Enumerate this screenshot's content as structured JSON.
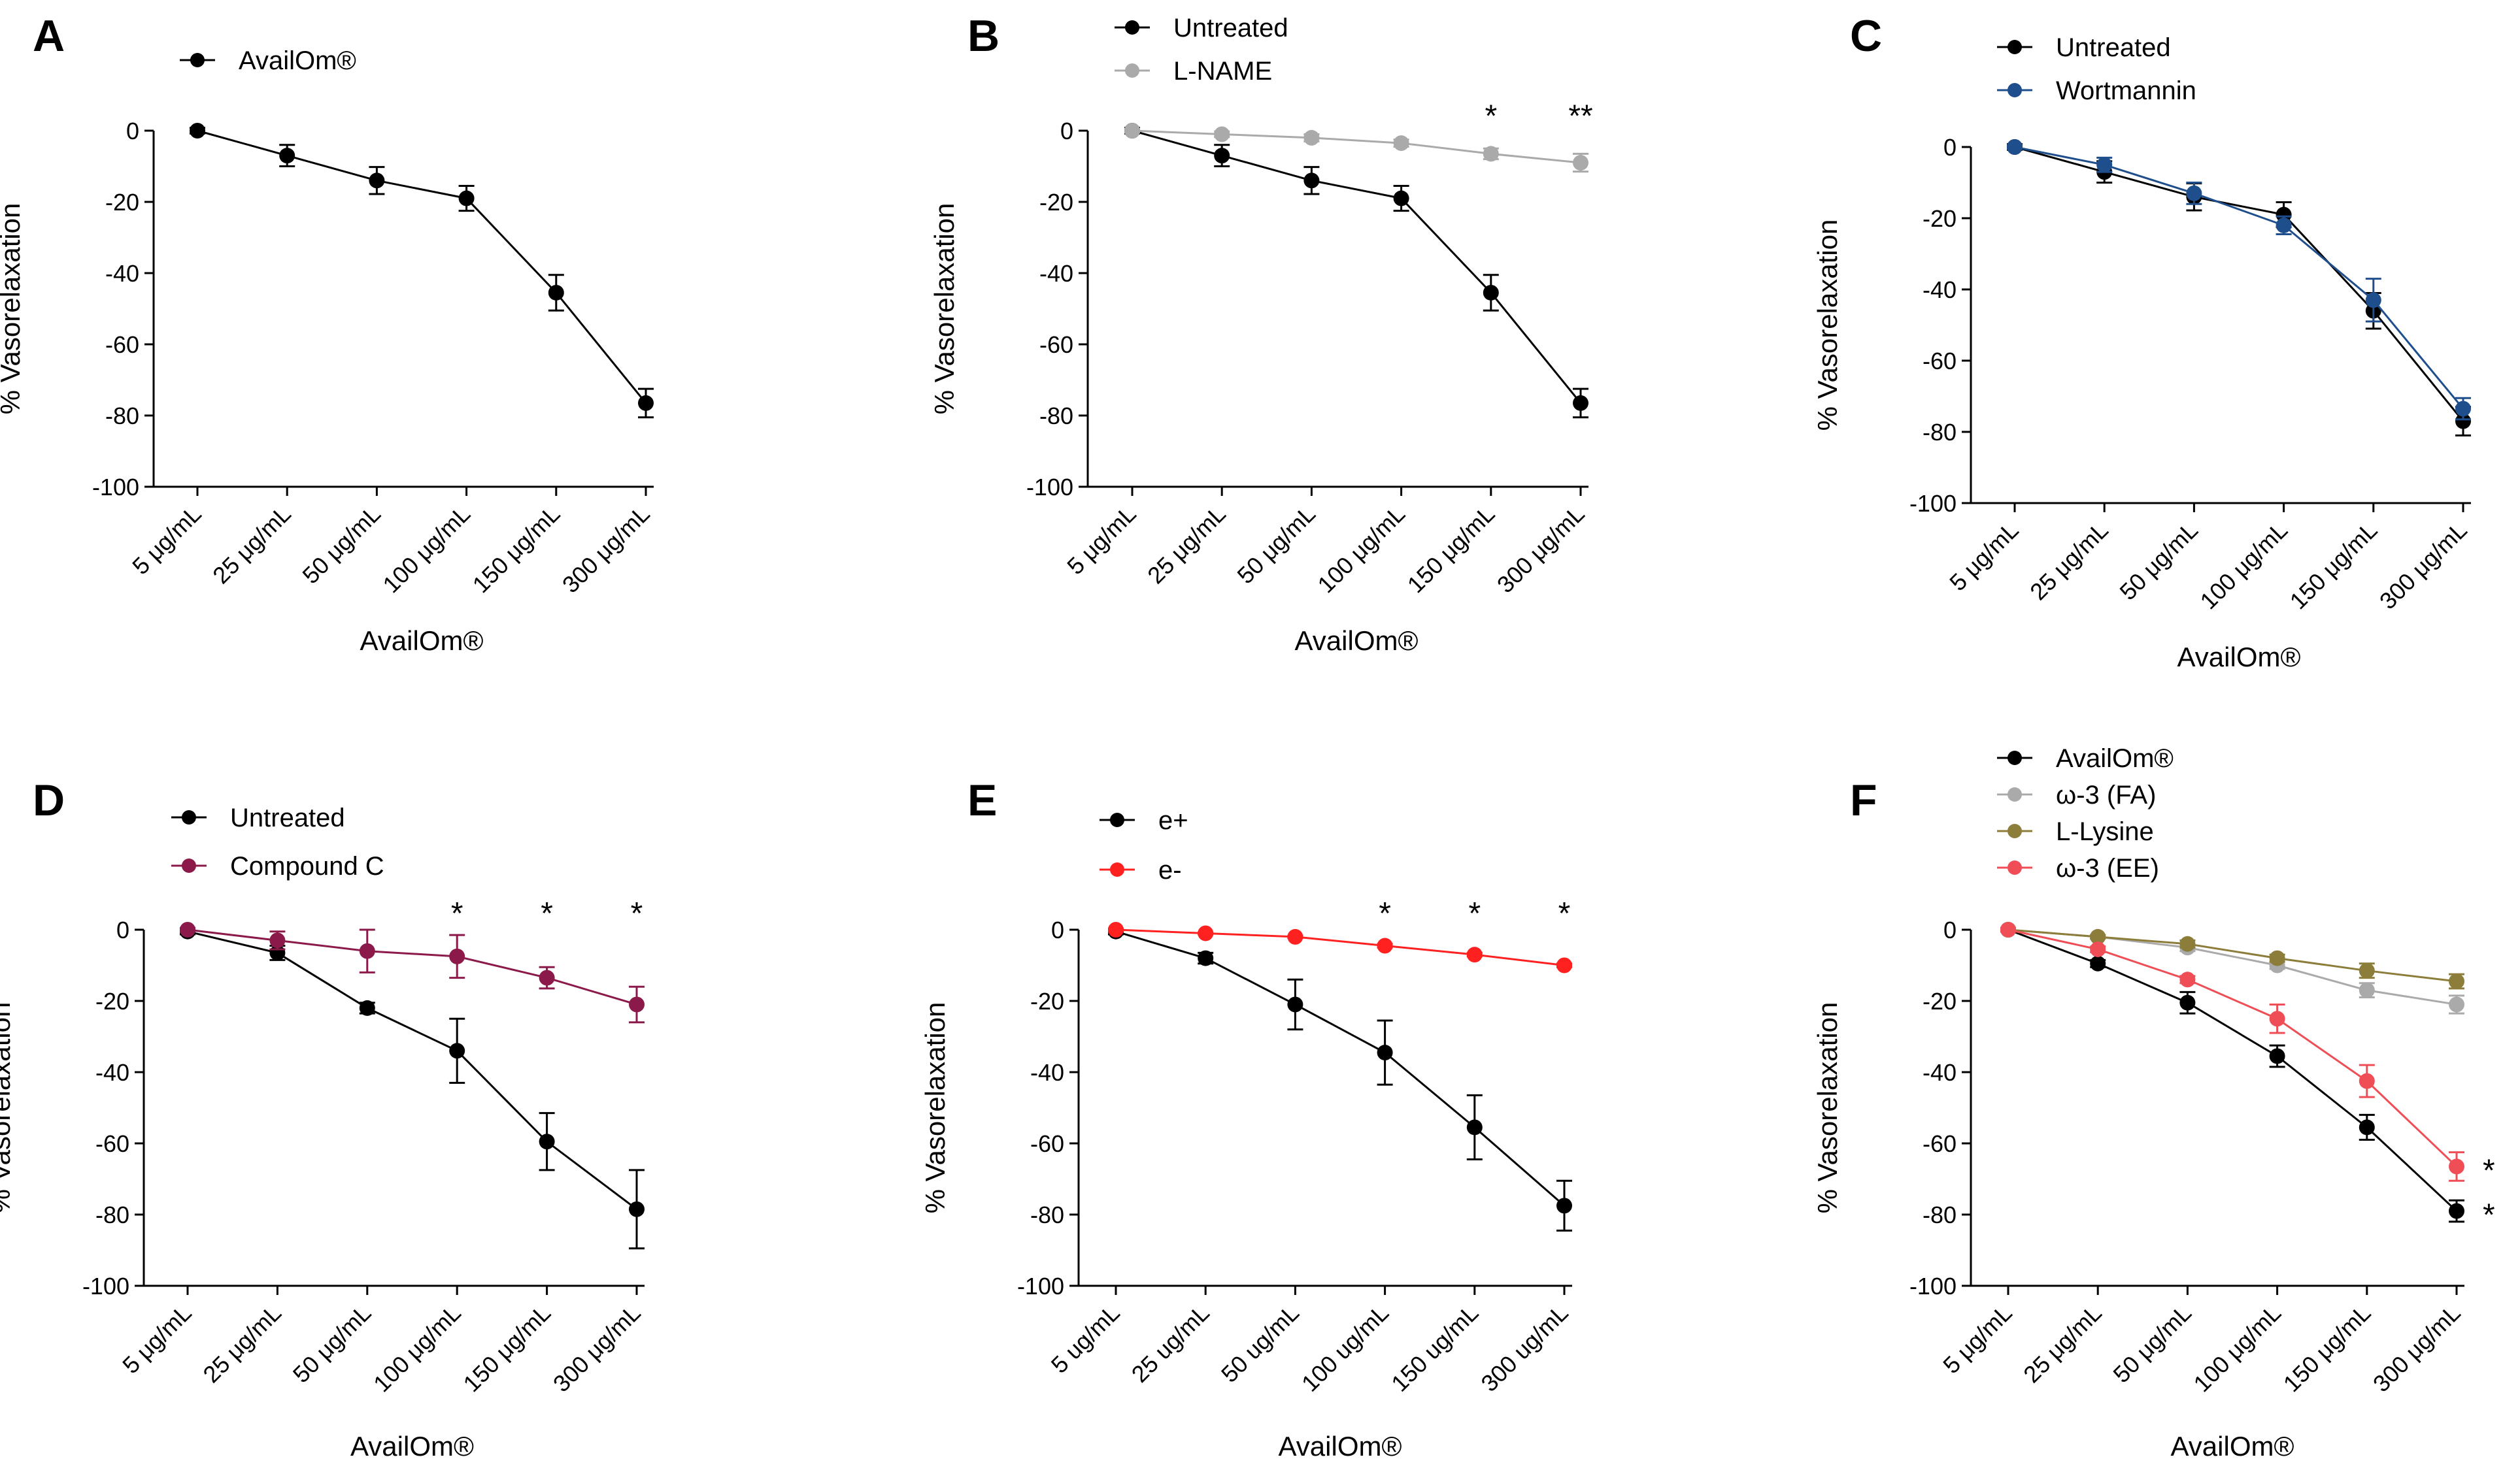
{
  "figure": {
    "panel_count": 6
  },
  "chart_data": [
    {
      "panel": "A",
      "type": "line",
      "xlabel": "AvailOm®",
      "ylabel": "% Vasorelaxation",
      "ylim": [
        -100,
        0
      ],
      "yticks": [
        0,
        -20,
        -40,
        -60,
        -80,
        -100
      ],
      "legend_position": "top-left",
      "categories": [
        "5 μg/mL",
        "25 μg/mL",
        "50 μg/mL",
        "100 μg/mL",
        "150 μg/mL",
        "300 μg/mL"
      ],
      "series": [
        {
          "name": "AvailOm®",
          "color": "#000000",
          "values": [
            0,
            -7,
            -14,
            -19,
            -45.5,
            -76.5
          ],
          "errors": [
            0.8,
            3,
            3.8,
            3.5,
            5,
            4
          ]
        }
      ],
      "annotations": []
    },
    {
      "panel": "B",
      "type": "line",
      "xlabel": "AvailOm®",
      "ylabel": "% Vasorelaxation",
      "ylim": [
        -100,
        0
      ],
      "yticks": [
        0,
        -20,
        -40,
        -60,
        -80,
        -100
      ],
      "legend_position": "top-left",
      "categories": [
        "5 μg/mL",
        "25 μg/mL",
        "50 μg/mL",
        "100 μg/mL",
        "150 μg/mL",
        "300 μg/mL"
      ],
      "series": [
        {
          "name": "Untreated",
          "color": "#000000",
          "values": [
            0,
            -7,
            -14,
            -19,
            -45.5,
            -76.5
          ],
          "errors": [
            0.8,
            3,
            3.8,
            3.5,
            5,
            4
          ]
        },
        {
          "name": "L-NAME",
          "color": "#aaaaaa",
          "values": [
            0,
            -1,
            -2,
            -3.5,
            -6.5,
            -9
          ],
          "errors": [
            0.5,
            0.8,
            1,
            1,
            1.5,
            2.5
          ]
        }
      ],
      "annotations": [
        {
          "label": "*",
          "category_index": 4,
          "y": 3
        },
        {
          "label": "**",
          "category_index": 5,
          "y": 3
        }
      ]
    },
    {
      "panel": "C",
      "type": "line",
      "xlabel": "AvailOm®",
      "ylabel": "% Vasorelaxation",
      "ylim": [
        -100,
        0
      ],
      "yticks": [
        0,
        -20,
        -40,
        -60,
        -80,
        -100
      ],
      "legend_position": "top-left",
      "categories": [
        "5 μg/mL",
        "25 μg/mL",
        "50 μg/mL",
        "100 μg/mL",
        "150 μg/mL",
        "300 μg/mL"
      ],
      "series": [
        {
          "name": "Untreated",
          "color": "#000000",
          "values": [
            0,
            -7,
            -14,
            -19,
            -46,
            -77
          ],
          "errors": [
            0.8,
            3,
            3.8,
            3.5,
            5,
            4
          ]
        },
        {
          "name": "Wortmannin",
          "color": "#1f4e8c",
          "values": [
            0,
            -5,
            -13,
            -22,
            -43,
            -73.5
          ],
          "errors": [
            0.5,
            2,
            3,
            2.5,
            6,
            3
          ]
        }
      ],
      "annotations": []
    },
    {
      "panel": "D",
      "type": "line",
      "xlabel": "AvailOm®",
      "ylabel": "% Vasorelaxation",
      "ylim": [
        -100,
        0
      ],
      "yticks": [
        0,
        -20,
        -40,
        -60,
        -80,
        -100
      ],
      "legend_position": "top-left",
      "categories": [
        "5 μg/mL",
        "25 μg/mL",
        "50 μg/mL",
        "100 μg/mL",
        "150 μg/mL",
        "300 μg/mL"
      ],
      "series": [
        {
          "name": "Untreated",
          "color": "#000000",
          "values": [
            -0.5,
            -6.5,
            -22,
            -34,
            -59.5,
            -78.5
          ],
          "errors": [
            0.8,
            2,
            1.5,
            9,
            8,
            11
          ]
        },
        {
          "name": "Compound C",
          "color": "#8b1a4a",
          "values": [
            0,
            -3,
            -6,
            -7.5,
            -13.5,
            -21
          ],
          "errors": [
            0.5,
            2.5,
            6,
            6,
            3,
            5
          ]
        }
      ],
      "annotations": [
        {
          "label": "*",
          "category_index": 3,
          "y": 3.5
        },
        {
          "label": "*",
          "category_index": 4,
          "y": 3.5
        },
        {
          "label": "*",
          "category_index": 5,
          "y": 3.5
        }
      ]
    },
    {
      "panel": "E",
      "type": "line",
      "xlabel": "AvailOm®",
      "ylabel": "% Vasorelaxation",
      "ylim": [
        -100,
        0
      ],
      "yticks": [
        0,
        -20,
        -40,
        -60,
        -80,
        -100
      ],
      "legend_position": "top-left",
      "categories": [
        "5 ug/mL",
        "25 ug/mL",
        "50 ug/mL",
        "100 ug/mL",
        "150 ug/mL",
        "300 ug/mL"
      ],
      "series": [
        {
          "name": "e+",
          "color": "#000000",
          "values": [
            -0.5,
            -8,
            -21,
            -34.5,
            -55.5,
            -77.5
          ],
          "errors": [
            0.8,
            1.5,
            7,
            9,
            9,
            7
          ]
        },
        {
          "name": "e-",
          "color": "#ff2020",
          "values": [
            0,
            -1,
            -2,
            -4.5,
            -7,
            -10
          ],
          "errors": [
            0.3,
            0.3,
            0.3,
            0.5,
            0.5,
            0.5
          ]
        }
      ],
      "annotations": [
        {
          "label": "*",
          "category_index": 3,
          "y": 3.5
        },
        {
          "label": "*",
          "category_index": 4,
          "y": 3.5
        },
        {
          "label": "*",
          "category_index": 5,
          "y": 3.5
        }
      ]
    },
    {
      "panel": "F",
      "type": "line",
      "xlabel": "AvailOm®",
      "ylabel": "% Vasorelaxation",
      "ylim": [
        -100,
        0
      ],
      "yticks": [
        0,
        -20,
        -40,
        -60,
        -80,
        -100
      ],
      "legend_position": "top-left",
      "categories": [
        "5 μg/mL",
        "25 μg/mL",
        "50 μg/mL",
        "100 μg/mL",
        "150 μg/mL",
        "300 μg/mL"
      ],
      "series": [
        {
          "name": "AvailOm®",
          "color": "#000000",
          "values": [
            0,
            -9.5,
            -20.5,
            -35.5,
            -55.5,
            -79
          ],
          "errors": [
            0.5,
            1,
            3,
            3,
            3.5,
            3
          ]
        },
        {
          "name": "ω-3 (FA)",
          "color": "#aaaaaa",
          "values": [
            0,
            -2,
            -5,
            -10,
            -17,
            -21
          ],
          "errors": [
            0.5,
            0.5,
            1,
            1,
            2,
            2.5
          ]
        },
        {
          "name": "L-Lysine",
          "color": "#8c7d3a",
          "values": [
            0,
            -2,
            -4,
            -8,
            -11.5,
            -14.5
          ],
          "errors": [
            0.5,
            0.5,
            1,
            1,
            2,
            2
          ]
        },
        {
          "name": "ω-3 (EE)",
          "color": "#ef4e57",
          "values": [
            0,
            -5.5,
            -14,
            -25,
            -42.5,
            -66.5
          ],
          "errors": [
            0.5,
            0.8,
            1,
            4,
            4.5,
            4
          ]
        }
      ],
      "annotations": [
        {
          "label": "*",
          "category_index": 5,
          "y": -66.5,
          "side": "right"
        },
        {
          "label": "*",
          "category_index": 5,
          "y": -79,
          "side": "right"
        }
      ]
    }
  ]
}
